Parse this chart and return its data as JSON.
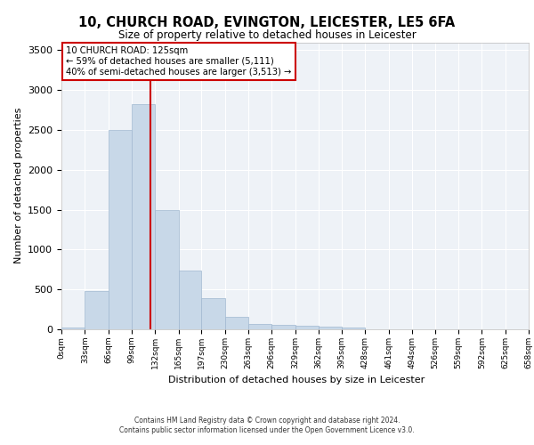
{
  "title1": "10, CHURCH ROAD, EVINGTON, LEICESTER, LE5 6FA",
  "title2": "Size of property relative to detached houses in Leicester",
  "xlabel": "Distribution of detached houses by size in Leicester",
  "ylabel": "Number of detached properties",
  "bin_labels": [
    "0sqm",
    "33sqm",
    "66sqm",
    "99sqm",
    "132sqm",
    "165sqm",
    "197sqm",
    "230sqm",
    "263sqm",
    "296sqm",
    "329sqm",
    "362sqm",
    "395sqm",
    "428sqm",
    "461sqm",
    "494sqm",
    "526sqm",
    "559sqm",
    "592sqm",
    "625sqm",
    "658sqm"
  ],
  "bin_edges": [
    0,
    33,
    66,
    99,
    132,
    165,
    197,
    230,
    263,
    296,
    329,
    362,
    395,
    428,
    461,
    494,
    526,
    559,
    592,
    625,
    658
  ],
  "bar_heights": [
    20,
    480,
    2500,
    2820,
    1500,
    740,
    390,
    155,
    70,
    55,
    45,
    30,
    25,
    0,
    0,
    0,
    0,
    0,
    0,
    0
  ],
  "bar_color": "#c8d8e8",
  "bar_edgecolor": "#a0b8d0",
  "background_color": "#eef2f7",
  "grid_color": "#ffffff",
  "vline_x": 125,
  "vline_color": "#cc0000",
  "annotation_text": "10 CHURCH ROAD: 125sqm\n← 59% of detached houses are smaller (5,111)\n40% of semi-detached houses are larger (3,513) →",
  "annotation_box_color": "#ffffff",
  "annotation_box_edgecolor": "#cc0000",
  "ylim": [
    0,
    3600
  ],
  "yticks": [
    0,
    500,
    1000,
    1500,
    2000,
    2500,
    3000,
    3500
  ],
  "footer1": "Contains HM Land Registry data © Crown copyright and database right 2024.",
  "footer2": "Contains public sector information licensed under the Open Government Licence v3.0."
}
